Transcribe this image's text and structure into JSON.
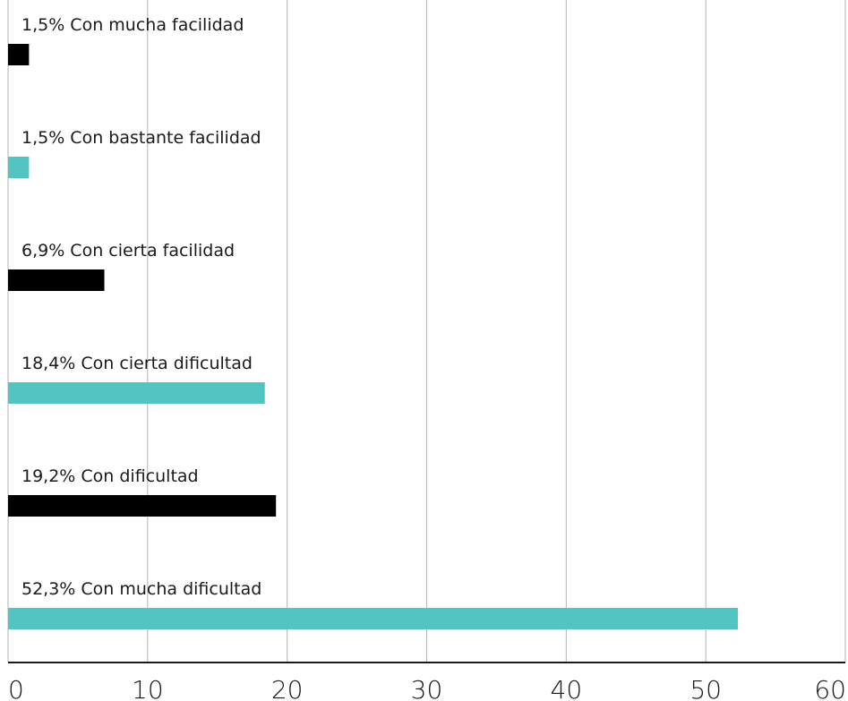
{
  "chart_data": {
    "type": "bar",
    "orientation": "horizontal",
    "title": "",
    "xlabel": "",
    "ylabel": "",
    "xlim": [
      0,
      60
    ],
    "x_ticks": [
      0,
      10,
      20,
      30,
      40,
      50,
      60
    ],
    "x_tick_labels": [
      "0",
      "10",
      "20",
      "30",
      "40",
      "50",
      "60"
    ],
    "grid": "vertical",
    "legend": "none",
    "bars": [
      {
        "label": "1,5% Con mucha facilidad",
        "value": 1.5,
        "color": "#000000"
      },
      {
        "label": "1,5% Con bastante facilidad",
        "value": 1.5,
        "color": "#52c4c2"
      },
      {
        "label": "6,9% Con cierta facilidad",
        "value": 6.9,
        "color": "#000000"
      },
      {
        "label": "18,4% Con cierta dificultad",
        "value": 18.4,
        "color": "#52c4c2"
      },
      {
        "label": "19,2% Con dificultad",
        "value": 19.2,
        "color": "#000000"
      },
      {
        "label": "52,3% Con mucha dificultad",
        "value": 52.3,
        "color": "#52c4c2"
      }
    ]
  }
}
